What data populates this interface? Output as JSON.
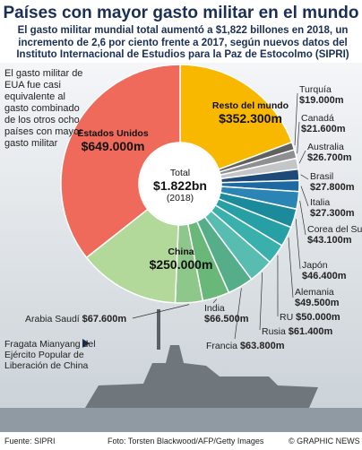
{
  "chart_data": {
    "type": "donut",
    "title": "Países con mayor gasto militar en el mundo",
    "subtitle": "El gasto militar mundial total aumentó a $1,822 billones en 2018, un incremento de 2,6 por ciento frente a 2017, según nuevos datos del Instituto Internacional de Estudios para la Paz de Estocolmo (SIPRI)",
    "categories": [
      "Resto del mundo",
      "Turquía",
      "Canadá",
      "Australia",
      "Brasil",
      "Italia",
      "Corea del Sur",
      "Japón",
      "Alemania",
      "RU",
      "Rusia",
      "Francia",
      "India",
      "Arabia Saudí",
      "China",
      "Estados Unidos"
    ],
    "values": [
      352300,
      19000,
      21600,
      26700,
      27800,
      27300,
      43100,
      46400,
      49500,
      50000,
      61400,
      63800,
      66500,
      67600,
      250000,
      649000
    ],
    "value_labels": [
      "$352.300m",
      "$19.000m",
      "$21.600m",
      "$26.700m",
      "$27.800m",
      "$27.300m",
      "$43.100m",
      "$46.400m",
      "$49.500m",
      "$50.000m",
      "$61.400m",
      "$63.800m",
      "$66.500m",
      "$67.600m",
      "$250.000m",
      "$649.000m"
    ],
    "colors": [
      "#f9b800",
      "#5f6062",
      "#8e8f91",
      "#c4c5c7",
      "#1d4a78",
      "#1f69a3",
      "#2a84b4",
      "#1b8a9b",
      "#27a0a5",
      "#3ab0ac",
      "#58bdb0",
      "#55ae89",
      "#69b879",
      "#8dc789",
      "#b2d89a",
      "#ef6a5a"
    ],
    "total": {
      "label": "Total",
      "value": 1822000,
      "value_label": "$1.822bn",
      "year": "(2018)"
    },
    "annotation": "El gasto militar de EUA fue casi equivalente al gasto combinado de los otros ocho países con mayor gasto militar",
    "caption": "Fragata Mianyang del Ejército Popular de Liberación de China"
  },
  "footer": {
    "source": "Fuente: SIPRI",
    "credit": "Foto: Torsten Blackwood/AFP/Getty Images",
    "copyright": "© GRAPHIC NEWS"
  }
}
